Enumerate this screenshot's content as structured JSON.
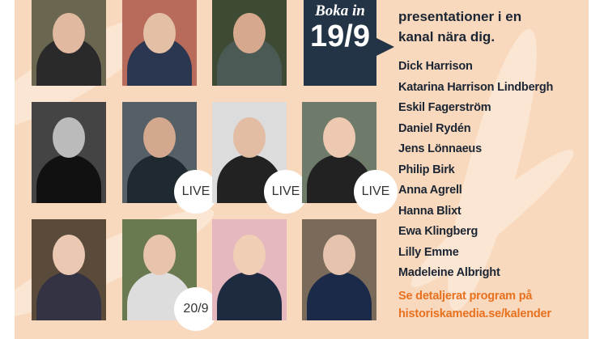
{
  "badge": {
    "line1": "Boka in",
    "line2": "19/9"
  },
  "intro": [
    "presentationer i en",
    "kanal nära dig."
  ],
  "speakers": [
    "Dick Harrison",
    "Katarina Harrison Lindbergh",
    "Eskil Fagerström",
    "Daniel Rydén",
    "Jens Lönnaeus",
    "Philip Birk",
    "Anna Agrell",
    "Hanna Blixt",
    "Ewa Klingberg",
    "Lilly Emme",
    "Madeleine Albright"
  ],
  "cta": [
    "Se detaljerat program på",
    "historiskamedia.se/kalender"
  ],
  "photo_badges": {
    "live": "LIVE",
    "date": "20/9"
  },
  "colors": {
    "background": "#f8d9bd",
    "badge": "#243447",
    "accent": "#e8711f",
    "text": "#1c2533"
  }
}
